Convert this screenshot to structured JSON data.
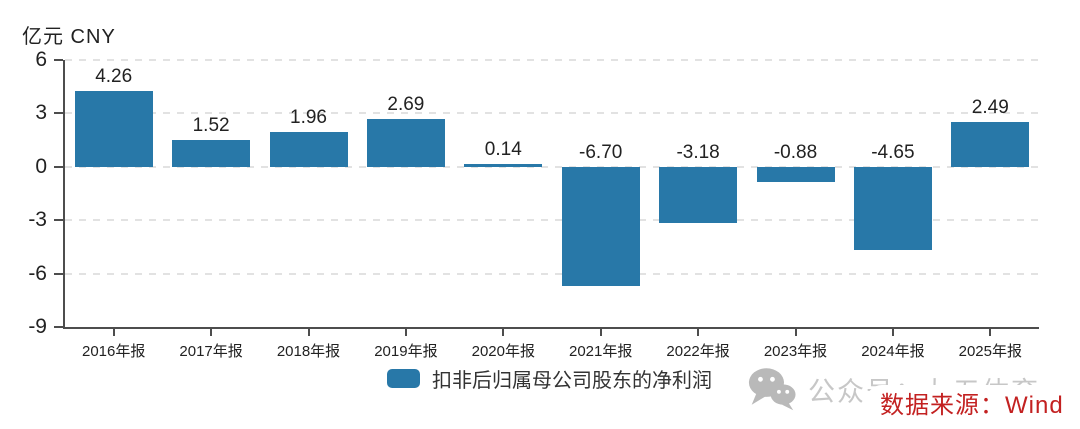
{
  "chart_data": {
    "type": "bar",
    "title": "",
    "unit_label": "亿元 CNY",
    "categories": [
      "2016年报",
      "2017年报",
      "2018年报",
      "2019年报",
      "2020年报",
      "2021年报",
      "2022年报",
      "2023年报",
      "2024年报",
      "2025年报"
    ],
    "series": [
      {
        "name": "扣非后归属母公司股东的净利润",
        "values": [
          4.26,
          1.52,
          1.96,
          2.69,
          0.14,
          -6.7,
          -3.18,
          -0.88,
          -4.65,
          2.49
        ]
      }
    ],
    "value_labels": [
      "4.26",
      "1.52",
      "1.96",
      "2.69",
      "0.14",
      "-6.70",
      "-3.18",
      "-0.88",
      "-4.65",
      "2.49"
    ],
    "y_ticks": [
      6,
      3,
      0,
      -3,
      -6,
      -9
    ],
    "ylim": [
      -9,
      6
    ],
    "xlabel": "",
    "ylabel": "亿元 CNY",
    "grid": "horizontal-dashed",
    "bar_color": "#2878a8",
    "legend_position": "bottom-center"
  },
  "watermark": {
    "icon": "wechat-icon",
    "text": "公众号：九五体育"
  },
  "source": {
    "label": "数据来源：Wind",
    "color": "#c32121"
  }
}
